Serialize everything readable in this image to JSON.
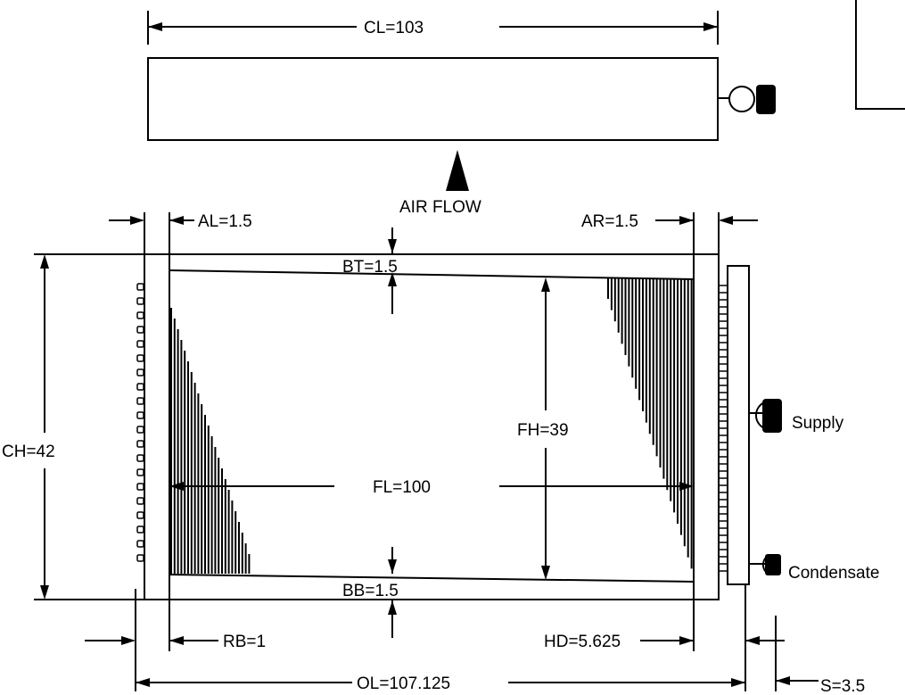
{
  "dimensions": {
    "cl": "CL=103",
    "air_flow": "AIR FLOW",
    "al": "AL=1.5",
    "ar": "AR=1.5",
    "bt": "BT=1.5",
    "ch": "CH=42",
    "fh": "FH=39",
    "fl": "FL=100",
    "bb": "BB=1.5",
    "rb": "RB=1",
    "hd": "HD=5.625",
    "ol": "OL=107.125",
    "s": "S=3.5"
  },
  "connections": {
    "supply": "Supply",
    "condensate": "Condensate"
  }
}
